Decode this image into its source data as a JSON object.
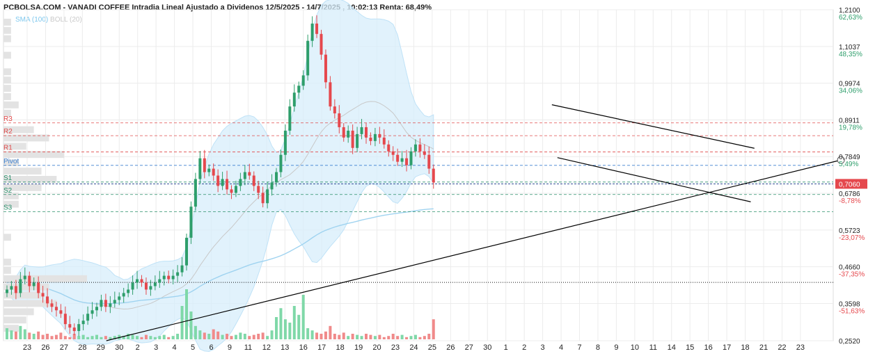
{
  "header": {
    "title": "PCBOLSA.COM - VANADI COFFEE Intradia Lineal Ajustado a Dividenos 12/5/2025 - 14/7/2025 , 10:02:13 Renta: 68,49%",
    "legend_sma": "SMA (100)",
    "legend_boll": "BOLL (20)"
  },
  "colors": {
    "up": "#2e9e6b",
    "down": "#e5484d",
    "volume_up": "#7fd8a8",
    "volume_down": "#f08a8a",
    "bollinger_fill": "#d7eefb",
    "sma_line": "#9fd3f0",
    "boll_mid": "#c8c8c8",
    "pivot_blue": "#3a7fd0",
    "support_green": "#2a8f6a",
    "resistance_red": "#e04a4a",
    "price_label_bg": "#e5484d"
  },
  "chart_data": {
    "type": "candlestick",
    "ylim": [
      0.252,
      1.21
    ],
    "y_scale": "linear",
    "grid": true,
    "x_ticks": [
      "23",
      "26",
      "27",
      "28",
      "29",
      "30",
      "2",
      "3",
      "4",
      "5",
      "6",
      "9",
      "11",
      "12",
      "13",
      "16",
      "17",
      "18",
      "19",
      "20",
      "23",
      "24",
      "25",
      "26",
      "27",
      "30",
      "1",
      "2",
      "3",
      "4",
      "7",
      "8",
      "9",
      "10",
      "11",
      "14",
      "15",
      "16",
      "17",
      "18",
      "21",
      "22",
      "23"
    ],
    "y_ticks": [
      {
        "value": 1.21,
        "label": "1,2100",
        "pct": "62,63%",
        "pct_sign": "pos"
      },
      {
        "value": 1.1037,
        "label": "1,1037",
        "pct": "48,35%",
        "pct_sign": "pos"
      },
      {
        "value": 0.9974,
        "label": "0,9974",
        "pct": "34,06%",
        "pct_sign": "pos"
      },
      {
        "value": 0.8911,
        "label": "0,8911",
        "pct": "19,78%",
        "pct_sign": "pos"
      },
      {
        "value": 0.7849,
        "label": "0,7849",
        "pct": "5,49%",
        "pct_sign": "pos"
      },
      {
        "value": 0.6786,
        "label": "0,6786",
        "pct": "-8,78%",
        "pct_sign": "neg"
      },
      {
        "value": 0.5723,
        "label": "0,5723",
        "pct": "-23,07%",
        "pct_sign": "neg"
      },
      {
        "value": 0.466,
        "label": "0,4660",
        "pct": "-37,35%",
        "pct_sign": "neg"
      },
      {
        "value": 0.3598,
        "label": "0,3598",
        "pct": "-51,63%",
        "pct_sign": "neg"
      },
      {
        "value": 0.252,
        "label": "0,2520",
        "pct": "",
        "pct_sign": "none"
      }
    ],
    "current_price": {
      "value": 0.706,
      "label": "0,7060"
    },
    "reference_level": 0.4208,
    "pivot_levels": [
      {
        "name": "R3",
        "value": 0.8824,
        "kind": "resistance"
      },
      {
        "name": "R2",
        "value": 0.8455,
        "kind": "resistance"
      },
      {
        "name": "R1",
        "value": 0.7985,
        "kind": "resistance"
      },
      {
        "name": "Pivot",
        "value": 0.7596,
        "kind": "pivot"
      },
      {
        "name": "S1",
        "value": 0.7113,
        "kind": "support"
      },
      {
        "name": "S2",
        "value": 0.6751,
        "kind": "support"
      },
      {
        "name": "S3",
        "value": 0.6251,
        "kind": "support"
      }
    ],
    "trendlines": [
      {
        "from": [
          4.3,
          0.252
        ],
        "to": [
          44.2,
          0.775
        ],
        "end_marker": true
      },
      {
        "from": [
          28.5,
          0.935
        ],
        "to": [
          39.5,
          0.809
        ],
        "end_marker": false
      },
      {
        "from": [
          28.8,
          0.782
        ],
        "to": [
          39.3,
          0.654
        ],
        "end_marker": false
      }
    ],
    "closes": [
      0.4,
      0.41,
      0.39,
      0.43,
      0.44,
      0.41,
      0.42,
      0.39,
      0.38,
      0.36,
      0.35,
      0.34,
      0.33,
      0.3,
      0.29,
      0.28,
      0.3,
      0.31,
      0.33,
      0.34,
      0.35,
      0.37,
      0.35,
      0.36,
      0.37,
      0.38,
      0.39,
      0.4,
      0.42,
      0.43,
      0.42,
      0.4,
      0.41,
      0.42,
      0.43,
      0.44,
      0.43,
      0.44,
      0.45,
      0.47,
      0.55,
      0.64,
      0.72,
      0.78,
      0.74,
      0.75,
      0.73,
      0.7,
      0.72,
      0.69,
      0.68,
      0.7,
      0.72,
      0.74,
      0.73,
      0.7,
      0.68,
      0.65,
      0.69,
      0.71,
      0.74,
      0.79,
      0.86,
      0.93,
      0.97,
      0.99,
      1.02,
      1.12,
      1.17,
      1.14,
      1.08,
      1.0,
      0.93,
      0.91,
      0.87,
      0.84,
      0.86,
      0.81,
      0.85,
      0.87,
      0.84,
      0.83,
      0.85,
      0.84,
      0.82,
      0.8,
      0.79,
      0.77,
      0.78,
      0.76,
      0.8,
      0.82,
      0.8,
      0.79,
      0.75,
      0.71
    ],
    "volumes": [
      0.1,
      0.08,
      0.07,
      0.12,
      0.09,
      0.06,
      0.05,
      0.07,
      0.04,
      0.05,
      0.03,
      0.04,
      0.06,
      0.03,
      0.02,
      0.05,
      0.03,
      0.04,
      0.02,
      0.03,
      0.04,
      0.02,
      0.03,
      0.02,
      0.03,
      0.04,
      0.03,
      0.05,
      0.04,
      0.03,
      0.02,
      0.04,
      0.03,
      0.02,
      0.03,
      0.04,
      0.02,
      0.03,
      0.05,
      0.3,
      0.45,
      0.25,
      0.12,
      0.08,
      0.06,
      0.05,
      0.09,
      0.07,
      0.04,
      0.05,
      0.03,
      0.04,
      0.06,
      0.05,
      0.03,
      0.04,
      0.05,
      0.06,
      0.03,
      0.08,
      0.2,
      0.28,
      0.18,
      0.15,
      0.3,
      0.22,
      0.4,
      0.1,
      0.08,
      0.06,
      0.05,
      0.07,
      0.12,
      0.05,
      0.04,
      0.06,
      0.03,
      0.05,
      0.04,
      0.03,
      0.05,
      0.04,
      0.03,
      0.04,
      0.02,
      0.03,
      0.05,
      0.03,
      0.04,
      0.02,
      0.03,
      0.04,
      0.02,
      0.03,
      0.05,
      0.18
    ]
  }
}
